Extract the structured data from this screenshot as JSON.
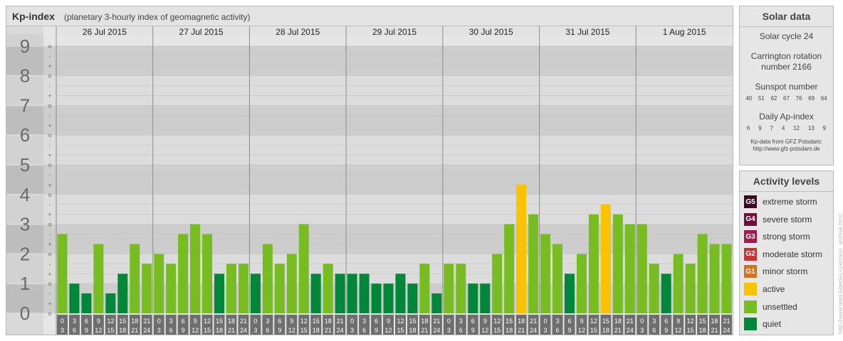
{
  "header": {
    "title": "Kp-index",
    "subtitle": "(planetary 3-hourly index of geomagnetic activity)"
  },
  "y_labels": [
    "0",
    "1",
    "2",
    "3",
    "4",
    "5",
    "6",
    "7",
    "8",
    "9"
  ],
  "sub_ticks": [
    "o",
    "+",
    "-"
  ],
  "days": [
    "26 Jul 2015",
    "27 Jul 2015",
    "28 Jul 2015",
    "29 Jul 2015",
    "30 Jul 2015",
    "31 Jul 2015",
    "1 Aug 2015"
  ],
  "hour_top": [
    "0",
    "3",
    "6",
    "9",
    "12",
    "15",
    "18",
    "21"
  ],
  "hour_bottom": [
    "3",
    "6",
    "9",
    "12",
    "15",
    "18",
    "21",
    "24"
  ],
  "colors": {
    "quiet": "#00873a",
    "unsettled": "#77bc21",
    "active": "#f9c300",
    "g1": "#d8711a",
    "g2": "#cc3333",
    "g3": "#a11d4f",
    "g4": "#700f3a",
    "g5": "#3d0a24",
    "band_dark": "#cdcdcd",
    "band_light": "#dcdcdc"
  },
  "chart_data": {
    "type": "bar",
    "xlabel": "",
    "ylabel": "",
    "ylim": [
      0,
      9
    ],
    "categories": [
      "26 Jul 2015 00-03",
      "26 Jul 2015 03-06",
      "26 Jul 2015 06-09",
      "26 Jul 2015 09-12",
      "26 Jul 2015 12-15",
      "26 Jul 2015 15-18",
      "26 Jul 2015 18-21",
      "26 Jul 2015 21-24",
      "27 Jul 2015 00-03",
      "27 Jul 2015 03-06",
      "27 Jul 2015 06-09",
      "27 Jul 2015 09-12",
      "27 Jul 2015 12-15",
      "27 Jul 2015 15-18",
      "27 Jul 2015 18-21",
      "27 Jul 2015 21-24",
      "28 Jul 2015 00-03",
      "28 Jul 2015 03-06",
      "28 Jul 2015 06-09",
      "28 Jul 2015 09-12",
      "28 Jul 2015 12-15",
      "28 Jul 2015 15-18",
      "28 Jul 2015 18-21",
      "28 Jul 2015 21-24",
      "29 Jul 2015 00-03",
      "29 Jul 2015 03-06",
      "29 Jul 2015 06-09",
      "29 Jul 2015 09-12",
      "29 Jul 2015 12-15",
      "29 Jul 2015 15-18",
      "29 Jul 2015 18-21",
      "29 Jul 2015 21-24",
      "30 Jul 2015 00-03",
      "30 Jul 2015 03-06",
      "30 Jul 2015 06-09",
      "30 Jul 2015 09-12",
      "30 Jul 2015 12-15",
      "30 Jul 2015 15-18",
      "30 Jul 2015 18-21",
      "30 Jul 2015 21-24",
      "31 Jul 2015 00-03",
      "31 Jul 2015 03-06",
      "31 Jul 2015 06-09",
      "31 Jul 2015 09-12",
      "31 Jul 2015 12-15",
      "31 Jul 2015 15-18",
      "31 Jul 2015 18-21",
      "31 Jul 2015 21-24",
      "1 Aug 2015 00-03",
      "1 Aug 2015 03-06",
      "1 Aug 2015 06-09",
      "1 Aug 2015 09-12",
      "1 Aug 2015 12-15",
      "1 Aug 2015 15-18",
      "1 Aug 2015 18-21",
      "1 Aug 2015 21-24"
    ],
    "values": [
      2.67,
      1.0,
      0.67,
      2.33,
      0.67,
      1.33,
      2.33,
      1.67,
      2.0,
      1.67,
      2.67,
      3.0,
      2.67,
      1.33,
      1.67,
      1.67,
      1.33,
      2.33,
      1.67,
      2.0,
      3.0,
      1.33,
      1.67,
      1.33,
      1.33,
      1.33,
      1.0,
      1.0,
      1.33,
      1.0,
      1.67,
      0.67,
      1.67,
      1.67,
      1.0,
      1.0,
      2.0,
      3.0,
      4.33,
      3.33,
      2.67,
      2.33,
      1.33,
      2.0,
      3.33,
      3.67,
      3.33,
      3.0,
      3.0,
      1.67,
      1.33,
      2.0,
      1.67,
      2.67,
      2.33,
      2.33
    ],
    "levels": [
      "unsettled",
      "quiet",
      "quiet",
      "unsettled",
      "quiet",
      "quiet",
      "unsettled",
      "unsettled",
      "unsettled",
      "unsettled",
      "unsettled",
      "unsettled",
      "unsettled",
      "quiet",
      "unsettled",
      "unsettled",
      "quiet",
      "unsettled",
      "unsettled",
      "unsettled",
      "unsettled",
      "quiet",
      "unsettled",
      "quiet",
      "quiet",
      "quiet",
      "quiet",
      "quiet",
      "quiet",
      "quiet",
      "unsettled",
      "quiet",
      "unsettled",
      "unsettled",
      "quiet",
      "quiet",
      "unsettled",
      "unsettled",
      "active",
      "unsettled",
      "unsettled",
      "unsettled",
      "quiet",
      "unsettled",
      "unsettled",
      "active",
      "unsettled",
      "unsettled",
      "unsettled",
      "unsettled",
      "quiet",
      "unsettled",
      "unsettled",
      "unsettled",
      "unsettled",
      "unsettled"
    ],
    "grid": true
  },
  "solar": {
    "title": "Solar data",
    "cycle": "Solar cycle 24",
    "carrington_line1": "Carrington rotation",
    "carrington_line2": "number 2166",
    "sunspot_title": "Sunspot number",
    "sunspot_values": [
      "40",
      "51",
      "62",
      "67",
      "76",
      "69",
      "64"
    ],
    "ap_title": "Daily Ap-index",
    "ap_values": [
      "6",
      "9",
      "7",
      "4",
      "12",
      "13",
      "9"
    ],
    "source_line1": "Kp-data from GFZ Potsdam:",
    "source_line2": "http://www.gfz-potsdam.de"
  },
  "activity": {
    "title": "Activity levels",
    "items": [
      {
        "code": "G5",
        "label": "extreme storm",
        "color": "#3d0a24"
      },
      {
        "code": "G4",
        "label": "severe storm",
        "color": "#700f3a"
      },
      {
        "code": "G3",
        "label": "strong storm",
        "color": "#a11d4f"
      },
      {
        "code": "G2",
        "label": "moderate storm",
        "color": "#cc3333"
      },
      {
        "code": "G1",
        "label": "minor storm",
        "color": "#d8711a"
      },
      {
        "code": "",
        "label": "active",
        "color": "#f9c300"
      },
      {
        "code": "",
        "label": "unsettled",
        "color": "#77bc21"
      },
      {
        "code": "",
        "label": "quiet",
        "color": "#00873a"
      }
    ]
  },
  "watermark": "http://www.tesis.lebedev.ru/en/sun_archive.html"
}
